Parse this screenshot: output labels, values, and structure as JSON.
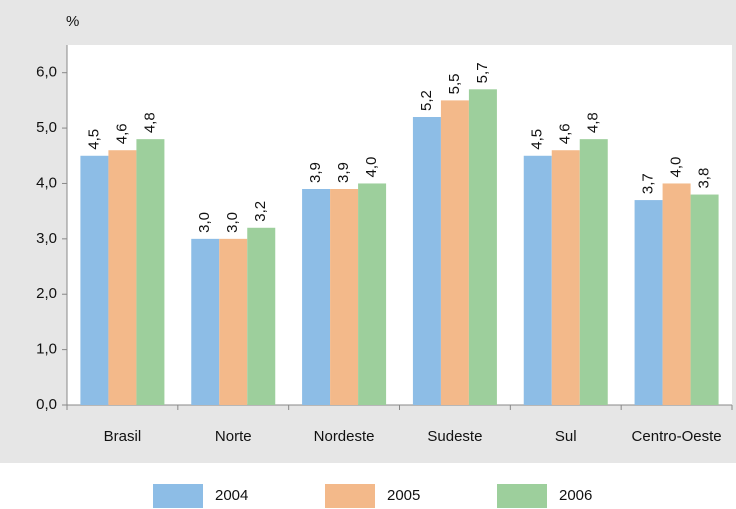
{
  "chart_data": {
    "type": "bar",
    "y_label": "%",
    "categories": [
      "Brasil",
      "Norte",
      "Nordeste",
      "Sudeste",
      "Sul",
      "Centro-Oeste"
    ],
    "series": [
      {
        "name": "2004",
        "color": "#8dbde6",
        "values": [
          4.5,
          3.0,
          3.9,
          5.2,
          4.5,
          3.7
        ],
        "value_labels": [
          "4,5",
          "3,0",
          "3,9",
          "5,2",
          "4,5",
          "3,7"
        ]
      },
      {
        "name": "2005",
        "color": "#f3b98a",
        "values": [
          4.6,
          3.0,
          3.9,
          5.5,
          4.6,
          4.0
        ],
        "value_labels": [
          "4,6",
          "3,0",
          "3,9",
          "5,5",
          "4,6",
          "4,0"
        ]
      },
      {
        "name": "2006",
        "color": "#9dcf9c",
        "values": [
          4.8,
          3.2,
          4.0,
          5.7,
          4.8,
          3.8
        ],
        "value_labels": [
          "4,8",
          "3,2",
          "4,0",
          "5,7",
          "4,8",
          "3,8"
        ]
      }
    ],
    "ylim": [
      0,
      6.5
    ],
    "yticks": [
      {
        "value": 0,
        "label": "0,0"
      },
      {
        "value": 1,
        "label": "1,0"
      },
      {
        "value": 2,
        "label": "2,0"
      },
      {
        "value": 3,
        "label": "3,0"
      },
      {
        "value": 4,
        "label": "4,0"
      },
      {
        "value": 5,
        "label": "5,0"
      },
      {
        "value": 6,
        "label": "6,0"
      }
    ],
    "grid": false
  }
}
